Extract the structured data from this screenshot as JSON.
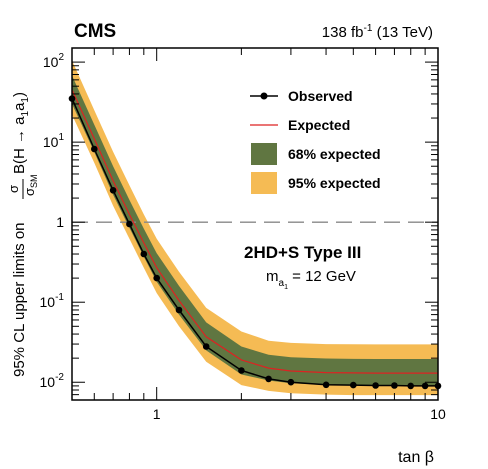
{
  "header": {
    "experiment": "CMS",
    "lumi_value": "138 fb",
    "lumi_exp": "-1",
    "lumi_energy": " (13 TeV)"
  },
  "annotation": {
    "model": "2HD+S Type III",
    "mass_label": "m",
    "mass_sub": "a",
    "mass_subsub": "1",
    "mass_value": " = 12 GeV"
  },
  "axes": {
    "xlabel": "tan β",
    "ylabel_prefix": "95% CL upper limits on",
    "ylabel_sigma": "σ",
    "ylabel_sigma_sm": "σ",
    "ylabel_sm_sub": "SM",
    "ylabel_br": "B(H → a",
    "ylabel_br_sub1": "1",
    "ylabel_a": "a",
    "ylabel_br_sub2": "1",
    "ylabel_close": ")",
    "y_tick_base": "10",
    "y_tick_one": "1",
    "x_tick_labels": [
      "1",
      "10"
    ]
  },
  "legend": {
    "observed": "Observed",
    "expected": "Expected",
    "band68": "68% expected",
    "band95": "95% expected"
  },
  "colors": {
    "band95": "#F5BB54",
    "band68": "#607641",
    "expected": "#DD2222",
    "observed": "#000000",
    "reference": "#888888"
  },
  "chart_data": {
    "type": "line",
    "x_scale": "log",
    "y_scale": "log",
    "xlim": [
      0.5,
      10
    ],
    "ylim": [
      0.006,
      150
    ],
    "x": [
      0.5,
      0.6,
      0.7,
      0.8,
      0.9,
      1.0,
      1.2,
      1.5,
      2.0,
      2.5,
      3.0,
      4.0,
      5.0,
      6.0,
      7.0,
      8.0,
      9.0,
      10.0
    ],
    "series": [
      {
        "name": "Observed",
        "values": [
          35,
          8.2,
          2.5,
          0.95,
          0.4,
          0.2,
          0.08,
          0.028,
          0.014,
          0.011,
          0.01,
          0.0093,
          0.0092,
          0.0091,
          0.0091,
          0.009,
          0.009,
          0.009
        ]
      },
      {
        "name": "Expected",
        "values": [
          45,
          11,
          3.3,
          1.25,
          0.55,
          0.27,
          0.105,
          0.037,
          0.019,
          0.015,
          0.0138,
          0.0132,
          0.0131,
          0.013,
          0.013,
          0.013,
          0.013,
          0.013
        ]
      },
      {
        "name": "68% expected",
        "low": [
          30,
          7.5,
          2.2,
          0.85,
          0.37,
          0.18,
          0.07,
          0.025,
          0.0125,
          0.0105,
          0.0097,
          0.0093,
          0.0092,
          0.0091,
          0.0091,
          0.009,
          0.009,
          0.009
        ],
        "high": [
          68,
          16.5,
          5.0,
          1.9,
          0.83,
          0.41,
          0.16,
          0.056,
          0.028,
          0.022,
          0.0205,
          0.0198,
          0.0196,
          0.0195,
          0.0195,
          0.0195,
          0.0195,
          0.0195
        ]
      },
      {
        "name": "95% expected",
        "low": [
          22,
          5.5,
          1.6,
          0.62,
          0.27,
          0.13,
          0.05,
          0.018,
          0.0092,
          0.0078,
          0.0073,
          0.007,
          0.0069,
          0.0069,
          0.0069,
          0.0069,
          0.0069,
          0.0069
        ],
        "high": [
          105,
          25,
          7.6,
          2.9,
          1.25,
          0.62,
          0.24,
          0.085,
          0.043,
          0.033,
          0.031,
          0.03,
          0.0298,
          0.0297,
          0.0297,
          0.0297,
          0.0297,
          0.0297
        ]
      }
    ],
    "reference_line": {
      "y": 1,
      "style": "dashed"
    },
    "legend_position": "top-right",
    "grid": false
  }
}
